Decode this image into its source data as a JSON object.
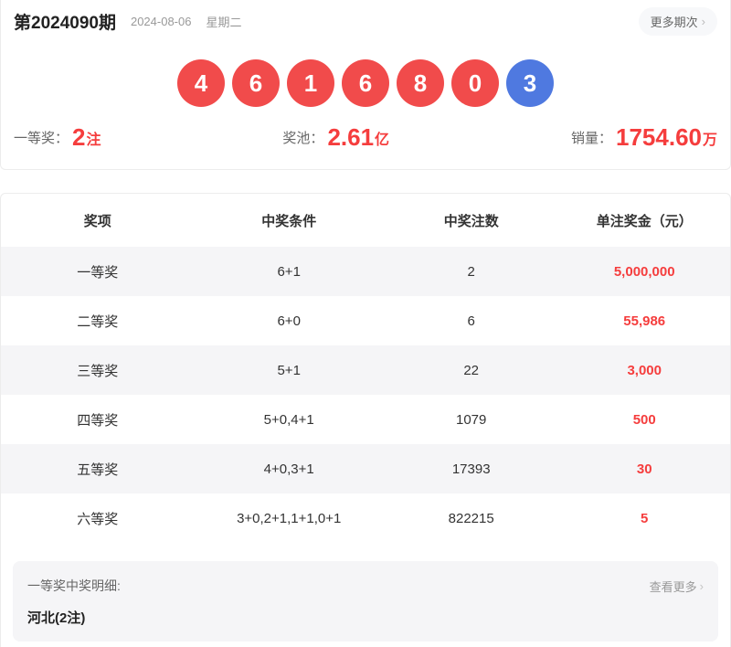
{
  "header": {
    "issue": "第2024090期",
    "date": "2024-08-06",
    "weekday": "星期二",
    "more_label": "更多期次",
    "more_arrow": "›"
  },
  "balls": {
    "red": [
      "4",
      "6",
      "1",
      "6",
      "8",
      "0"
    ],
    "blue": [
      "3"
    ]
  },
  "colors": {
    "red_ball": "#f14b4b",
    "blue_ball": "#4f79e0",
    "accent_red": "#f53d3d",
    "row_stripe": "#f5f5f7"
  },
  "stats": [
    {
      "label": "一等奖：",
      "value": "2",
      "unit": "注"
    },
    {
      "label": "奖池：",
      "value": "2.61",
      "unit": "亿"
    },
    {
      "label": "销量：",
      "value": "1754.60",
      "unit": "万"
    }
  ],
  "table": {
    "headers": [
      "奖项",
      "中奖条件",
      "中奖注数",
      "单注奖金（元）"
    ],
    "rows": [
      {
        "level": "一等奖",
        "condition": "6+1",
        "count": "2",
        "prize": "5,000,000"
      },
      {
        "level": "二等奖",
        "condition": "6+0",
        "count": "6",
        "prize": "55,986"
      },
      {
        "level": "三等奖",
        "condition": "5+1",
        "count": "22",
        "prize": "3,000"
      },
      {
        "level": "四等奖",
        "condition": "5+0,4+1",
        "count": "1079",
        "prize": "500"
      },
      {
        "level": "五等奖",
        "condition": "4+0,3+1",
        "count": "17393",
        "prize": "30"
      },
      {
        "level": "六等奖",
        "condition": "3+0,2+1,1+1,0+1",
        "count": "822215",
        "prize": "5"
      }
    ]
  },
  "detail": {
    "title": "一等奖中奖明细:",
    "more_label": "查看更多",
    "more_arrow": "›",
    "winner": "河北(2注)"
  }
}
